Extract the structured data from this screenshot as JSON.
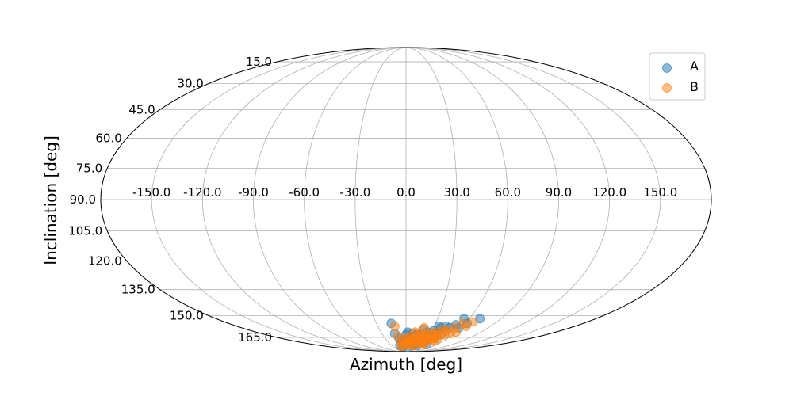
{
  "chart_data": {
    "type": "scatter",
    "projection": "mollweide",
    "title": "",
    "xlabel": "Azimuth [deg]",
    "ylabel": "Inclination [deg]",
    "grid": true,
    "legend_position": "top-right",
    "xticks": [
      "-150.0",
      "-120.0",
      "-90.0",
      "-60.0",
      "-30.0",
      "0.0",
      "30.0",
      "60.0",
      "90.0",
      "120.0",
      "150.0"
    ],
    "yticks": [
      "15.0",
      "30.0",
      "45.0",
      "60.0",
      "75.0",
      "90.0",
      "105.0",
      "120.0",
      "135.0",
      "150.0",
      "165.0"
    ],
    "xlim": [
      -180,
      180
    ],
    "ylim": [
      0,
      180
    ],
    "series": [
      {
        "name": "A",
        "color": "#1f77b4",
        "points": [
          [
            -15,
            155
          ],
          [
            -14,
            162
          ],
          [
            -13,
            172
          ],
          [
            -10,
            166
          ],
          [
            -7,
            173
          ],
          [
            -6,
            167
          ],
          [
            -2,
            167
          ],
          [
            0,
            163
          ],
          [
            2,
            161
          ],
          [
            3,
            168
          ],
          [
            5,
            166
          ],
          [
            6,
            170
          ],
          [
            8,
            162
          ],
          [
            9,
            167
          ],
          [
            10,
            171
          ],
          [
            11,
            164
          ],
          [
            12,
            168
          ],
          [
            14,
            163
          ],
          [
            15,
            166
          ],
          [
            16,
            170
          ],
          [
            18,
            163
          ],
          [
            19,
            167
          ],
          [
            20,
            159
          ],
          [
            22,
            164
          ],
          [
            23,
            168
          ],
          [
            24,
            172
          ],
          [
            25,
            166
          ],
          [
            26,
            161
          ],
          [
            28,
            164
          ],
          [
            30,
            167
          ],
          [
            32,
            160
          ],
          [
            33,
            165
          ],
          [
            35,
            157
          ],
          [
            36,
            162
          ],
          [
            38,
            158
          ],
          [
            40,
            165
          ],
          [
            43,
            157
          ],
          [
            45,
            163
          ],
          [
            48,
            158
          ],
          [
            52,
            156
          ],
          [
            55,
            152
          ],
          [
            58,
            158
          ],
          [
            62,
            155
          ],
          [
            70,
            152
          ],
          [
            40,
            171
          ],
          [
            15,
            172
          ],
          [
            5,
            174
          ],
          [
            -3,
            170
          ],
          [
            28,
            169
          ]
        ]
      },
      {
        "name": "B",
        "color": "#ff7f0e",
        "points": [
          [
            -12,
            157
          ],
          [
            -11,
            164
          ],
          [
            -8,
            170
          ],
          [
            -5,
            167
          ],
          [
            -3,
            172
          ],
          [
            0,
            169
          ],
          [
            2,
            166
          ],
          [
            4,
            170
          ],
          [
            5,
            164
          ],
          [
            7,
            168
          ],
          [
            8,
            172
          ],
          [
            10,
            166
          ],
          [
            11,
            161
          ],
          [
            13,
            169
          ],
          [
            14,
            164
          ],
          [
            16,
            167
          ],
          [
            17,
            172
          ],
          [
            18,
            162
          ],
          [
            20,
            166
          ],
          [
            21,
            170
          ],
          [
            23,
            163
          ],
          [
            24,
            167
          ],
          [
            26,
            165
          ],
          [
            27,
            169
          ],
          [
            29,
            162
          ],
          [
            30,
            166
          ],
          [
            31,
            170
          ],
          [
            33,
            163
          ],
          [
            34,
            167
          ],
          [
            36,
            161
          ],
          [
            37,
            166
          ],
          [
            39,
            163
          ],
          [
            41,
            167
          ],
          [
            42,
            159
          ],
          [
            44,
            163
          ],
          [
            46,
            166
          ],
          [
            47,
            160
          ],
          [
            50,
            163
          ],
          [
            53,
            158
          ],
          [
            55,
            162
          ],
          [
            58,
            155
          ],
          [
            60,
            161
          ],
          [
            64,
            157
          ],
          [
            66,
            154
          ],
          [
            45,
            168
          ],
          [
            20,
            158
          ],
          [
            -10,
            173
          ],
          [
            35,
            171
          ]
        ]
      }
    ]
  }
}
